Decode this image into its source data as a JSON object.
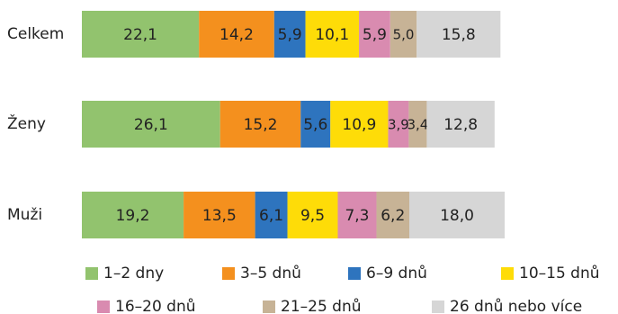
{
  "chart_data": {
    "type": "bar",
    "orientation": "horizontal",
    "stacked": true,
    "categories": [
      "Celkem",
      "Ženy",
      "Muži"
    ],
    "series": [
      {
        "name": "1–2 dny",
        "color": "#92c36e",
        "values": [
          22.1,
          26.1,
          19.2
        ],
        "labels": [
          "22,1",
          "26,1",
          "19,2"
        ]
      },
      {
        "name": "3–5 dnů",
        "color": "#f4901e",
        "values": [
          14.2,
          15.2,
          13.5
        ],
        "labels": [
          "14,2",
          "15,2",
          "13,5"
        ]
      },
      {
        "name": "6–9 dnů",
        "color": "#2e74be",
        "values": [
          5.9,
          5.6,
          6.1
        ],
        "labels": [
          "5,9",
          "5,6",
          "6,1"
        ]
      },
      {
        "name": "10–15 dnů",
        "color": "#fedc08",
        "values": [
          10.1,
          10.9,
          9.5
        ],
        "labels": [
          "10,1",
          "10,9",
          "9,5"
        ]
      },
      {
        "name": "16–20 dnů",
        "color": "#d98bb0",
        "values": [
          5.9,
          3.9,
          7.3
        ],
        "labels": [
          "5,9",
          "3,9",
          "7,3"
        ]
      },
      {
        "name": "21–25 dnů",
        "color": "#c7b396",
        "values": [
          5.0,
          3.4,
          6.2
        ],
        "labels": [
          "5,0",
          "3,4",
          "6,2"
        ]
      },
      {
        "name": "26 dnů nebo více",
        "color": "#d6d6d6",
        "values": [
          15.8,
          12.8,
          18.0
        ],
        "labels": [
          "15,8",
          "12,8",
          "18,0"
        ]
      }
    ],
    "xlim": [
      0,
      100
    ],
    "grid": false,
    "legend": "bottom"
  }
}
